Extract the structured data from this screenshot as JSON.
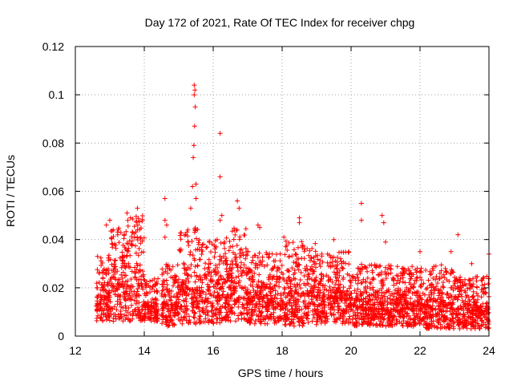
{
  "chart_data": {
    "type": "scatter",
    "title": "Day 172 of 2021, Rate Of TEC Index for receiver chpg",
    "xlabel": "GPS time / hours",
    "ylabel": "ROTI / TECUs",
    "xlim": [
      12,
      24
    ],
    "ylim": [
      0,
      0.12
    ],
    "xticks": [
      12,
      14,
      16,
      18,
      20,
      22,
      24
    ],
    "yticks": [
      0,
      0.02,
      0.04,
      0.06,
      0.08,
      0.1,
      0.12
    ],
    "xtick_labels": [
      "12",
      "14",
      "16",
      "18",
      "20",
      "22",
      "24"
    ],
    "ytick_labels": [
      "0",
      "0.02",
      "0.04",
      "0.06",
      "0.08",
      "0.1",
      "0.12"
    ],
    "grid": true,
    "legend": "none",
    "marker": "+",
    "color": "#ff0000",
    "series": [
      {
        "name": "ROTI",
        "envelope": [
          {
            "x_start": 12.6,
            "x_end": 13.0,
            "y_low": 0.006,
            "y_high": 0.035
          },
          {
            "x_start": 13.0,
            "x_end": 13.5,
            "y_low": 0.006,
            "y_high": 0.045
          },
          {
            "x_start": 13.5,
            "x_end": 14.0,
            "y_low": 0.006,
            "y_high": 0.05
          },
          {
            "x_start": 14.0,
            "x_end": 14.4,
            "y_low": 0.006,
            "y_high": 0.025
          },
          {
            "x_start": 14.5,
            "x_end": 15.0,
            "y_low": 0.004,
            "y_high": 0.03
          },
          {
            "x_start": 15.0,
            "x_end": 15.6,
            "y_low": 0.005,
            "y_high": 0.045
          },
          {
            "x_start": 15.6,
            "x_end": 16.2,
            "y_low": 0.005,
            "y_high": 0.04
          },
          {
            "x_start": 16.2,
            "x_end": 17.0,
            "y_low": 0.006,
            "y_high": 0.045
          },
          {
            "x_start": 17.0,
            "x_end": 18.0,
            "y_low": 0.005,
            "y_high": 0.035
          },
          {
            "x_start": 18.0,
            "x_end": 19.0,
            "y_low": 0.004,
            "y_high": 0.04
          },
          {
            "x_start": 19.0,
            "x_end": 20.0,
            "y_low": 0.005,
            "y_high": 0.035
          },
          {
            "x_start": 20.0,
            "x_end": 21.0,
            "y_low": 0.004,
            "y_high": 0.03
          },
          {
            "x_start": 21.0,
            "x_end": 22.0,
            "y_low": 0.004,
            "y_high": 0.03
          },
          {
            "x_start": 22.0,
            "x_end": 23.0,
            "y_low": 0.003,
            "y_high": 0.03
          },
          {
            "x_start": 23.0,
            "x_end": 24.0,
            "y_low": 0.003,
            "y_high": 0.025
          }
        ],
        "peaks": [
          {
            "x": 12.9,
            "y": 0.046
          },
          {
            "x": 13.0,
            "y": 0.048
          },
          {
            "x": 13.1,
            "y": 0.044
          },
          {
            "x": 13.5,
            "y": 0.051
          },
          {
            "x": 13.6,
            "y": 0.049
          },
          {
            "x": 13.8,
            "y": 0.053
          },
          {
            "x": 13.8,
            "y": 0.044
          },
          {
            "x": 14.6,
            "y": 0.057
          },
          {
            "x": 14.6,
            "y": 0.048
          },
          {
            "x": 14.65,
            "y": 0.046
          },
          {
            "x": 14.6,
            "y": 0.041
          },
          {
            "x": 15.2,
            "y": 0.042
          },
          {
            "x": 15.35,
            "y": 0.053
          },
          {
            "x": 15.4,
            "y": 0.062
          },
          {
            "x": 15.42,
            "y": 0.074
          },
          {
            "x": 15.44,
            "y": 0.079
          },
          {
            "x": 15.46,
            "y": 0.087
          },
          {
            "x": 15.48,
            "y": 0.095
          },
          {
            "x": 15.45,
            "y": 0.1
          },
          {
            "x": 15.47,
            "y": 0.102
          },
          {
            "x": 15.45,
            "y": 0.104
          },
          {
            "x": 15.5,
            "y": 0.063
          },
          {
            "x": 15.5,
            "y": 0.057
          },
          {
            "x": 16.2,
            "y": 0.084
          },
          {
            "x": 16.2,
            "y": 0.066
          },
          {
            "x": 16.25,
            "y": 0.05
          },
          {
            "x": 16.2,
            "y": 0.048
          },
          {
            "x": 16.7,
            "y": 0.056
          },
          {
            "x": 16.75,
            "y": 0.053
          },
          {
            "x": 17.3,
            "y": 0.046
          },
          {
            "x": 17.35,
            "y": 0.045
          },
          {
            "x": 18.05,
            "y": 0.041
          },
          {
            "x": 18.5,
            "y": 0.049
          },
          {
            "x": 18.5,
            "y": 0.047
          },
          {
            "x": 19.5,
            "y": 0.04
          },
          {
            "x": 20.3,
            "y": 0.055
          },
          {
            "x": 20.3,
            "y": 0.048
          },
          {
            "x": 20.9,
            "y": 0.05
          },
          {
            "x": 20.95,
            "y": 0.047
          },
          {
            "x": 21.0,
            "y": 0.039
          },
          {
            "x": 22.0,
            "y": 0.035
          },
          {
            "x": 22.9,
            "y": 0.035
          },
          {
            "x": 23.1,
            "y": 0.042
          },
          {
            "x": 23.5,
            "y": 0.03
          },
          {
            "x": 24.0,
            "y": 0.034
          }
        ]
      }
    ]
  }
}
